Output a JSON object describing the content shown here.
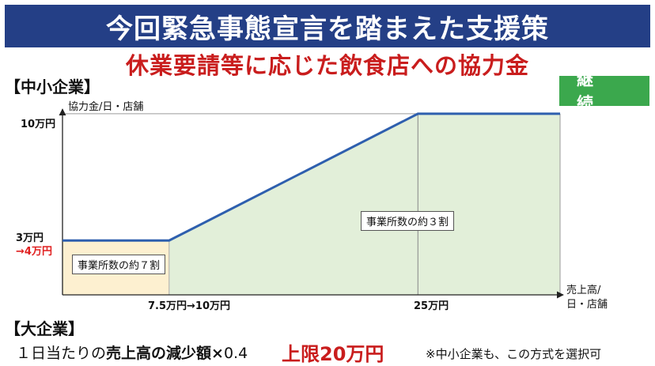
{
  "title": "今回緊急事態宣言を踏まえた支援策",
  "subtitle": "休業要請等に応じた飲食店への協力金",
  "sme_section": "【中小企業】",
  "badge": "継　続",
  "large_section": "【大企業】",
  "formula": {
    "prefix": "１日当たりの",
    "bold": "売上高の減少額",
    "times": "×",
    "factor": "0.4",
    "cap": "上限20万円"
  },
  "note": "※中小企業も、この方式を選択可",
  "colors": {
    "banner": "#243f86",
    "accent_red": "#c91d1d",
    "badge_green": "#3ba84d",
    "line": "#2e5fae",
    "fill_green": "#e2efd9",
    "fill_yellow": "#fdf0d0"
  },
  "chart_data": {
    "type": "line",
    "ylabel": "協力金/日・店舗",
    "xlabel": "売上高/\n日・店舗",
    "xlabel_line1": "売上高/",
    "xlabel_line2": "日・店舗",
    "yticks": [
      "10万円",
      "3万円",
      "→4万円"
    ],
    "xticks": [
      "7.5万円→10万円",
      "25万円"
    ],
    "x_unit": "万円",
    "y_unit": "万円",
    "xlim": [
      0,
      35
    ],
    "ylim": [
      0,
      11
    ],
    "series": [
      {
        "x": [
          0,
          7.5,
          25,
          35
        ],
        "y": [
          3,
          3,
          10,
          10
        ]
      }
    ],
    "regions": [
      {
        "label": "事業所数の約７割",
        "x_range": [
          0,
          7.5
        ]
      },
      {
        "label": "事業所数の約３割",
        "x_range": [
          7.5,
          35
        ]
      }
    ]
  }
}
